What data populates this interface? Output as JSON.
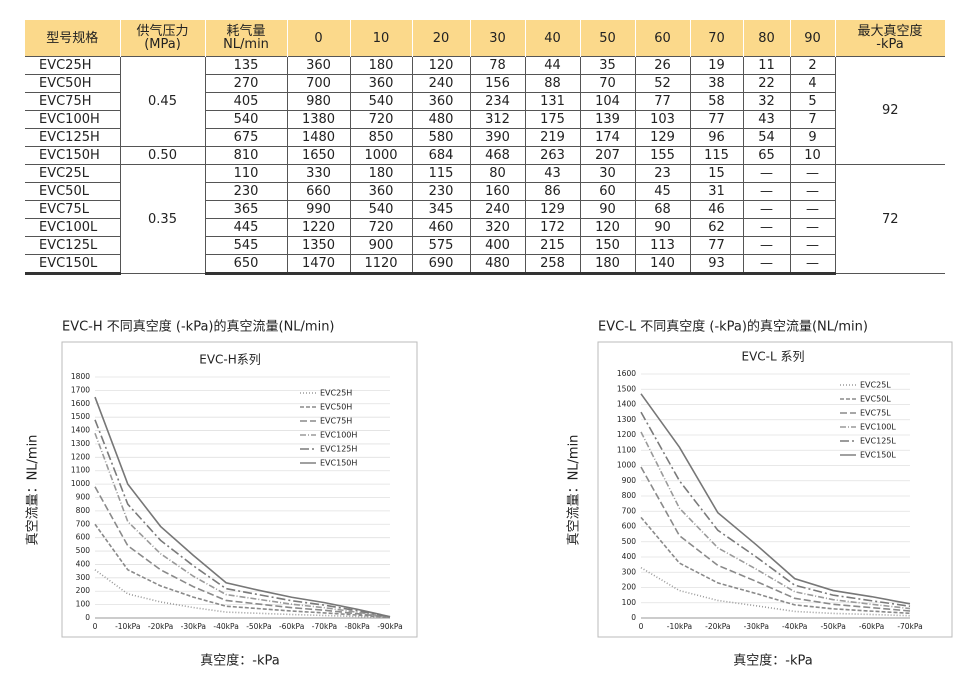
{
  "table": {
    "headers": [
      "型号规格",
      [
        "供气压力",
        "(MPa)"
      ],
      [
        "耗气量",
        "NL/min"
      ],
      "0",
      "10",
      "20",
      "30",
      "40",
      "50",
      "60",
      "70",
      "80",
      "90",
      [
        "最大真空度",
        "-kPa"
      ]
    ],
    "sections": [
      {
        "max_vacuum": 92,
        "groups": [
          {
            "pressure": "0.45",
            "rows": [
              [
                "EVC25H",
                135,
                360,
                180,
                120,
                78,
                44,
                35,
                26,
                19,
                11,
                2
              ],
              [
                "EVC50H",
                270,
                700,
                360,
                240,
                156,
                88,
                70,
                52,
                38,
                22,
                4
              ],
              [
                "EVC75H",
                405,
                980,
                540,
                360,
                234,
                131,
                104,
                77,
                58,
                32,
                5
              ],
              [
                "EVC100H",
                540,
                1380,
                720,
                480,
                312,
                175,
                139,
                103,
                77,
                43,
                7
              ],
              [
                "EVC125H",
                675,
                1480,
                850,
                580,
                390,
                219,
                174,
                129,
                96,
                54,
                9
              ]
            ]
          },
          {
            "pressure": "0.50",
            "rows": [
              [
                "EVC150H",
                810,
                1650,
                1000,
                684,
                468,
                263,
                207,
                155,
                115,
                65,
                10
              ]
            ]
          }
        ]
      },
      {
        "max_vacuum": 72,
        "groups": [
          {
            "pressure": "0.35",
            "rows": [
              [
                "EVC25L",
                110,
                330,
                180,
                115,
                80,
                43,
                30,
                23,
                15,
                "—",
                "—"
              ],
              [
                "EVC50L",
                230,
                660,
                360,
                230,
                160,
                86,
                60,
                45,
                31,
                "—",
                "—"
              ],
              [
                "EVC75L",
                365,
                990,
                540,
                345,
                240,
                129,
                90,
                68,
                46,
                "—",
                "—"
              ],
              [
                "EVC100L",
                445,
                1220,
                720,
                460,
                320,
                172,
                120,
                90,
                62,
                "—",
                "—"
              ],
              [
                "EVC125L",
                545,
                1350,
                900,
                575,
                400,
                215,
                150,
                113,
                77,
                "—",
                "—"
              ],
              [
                "EVC150L",
                650,
                1470,
                1120,
                690,
                480,
                258,
                180,
                140,
                93,
                "—",
                "—"
              ]
            ]
          }
        ]
      }
    ]
  },
  "chart_data": [
    {
      "type": "line",
      "caption": "EVC-H 不同真空度 (-kPa)的真空流量(NL/min)",
      "title": "EVC-H系列",
      "y_label": "真空流量：NL/min",
      "x_label": "真空度：-kPa",
      "categories": [
        "0",
        "-10kPa",
        "-20kPa",
        "-30kPa",
        "-40kPa",
        "-50kPa",
        "-60kPa",
        "-70kPa",
        "-80kPa",
        "-90kPa"
      ],
      "ylim": [
        0,
        1800
      ],
      "yticks": [
        0,
        100,
        200,
        300,
        400,
        500,
        600,
        700,
        800,
        900,
        1000,
        1100,
        1200,
        1300,
        1400,
        1500,
        1600,
        1700,
        1800
      ],
      "grid": true,
      "series": [
        {
          "name": "EVC25H",
          "color": "#9a9a9a",
          "dash": "dotted",
          "values": [
            360,
            180,
            120,
            78,
            44,
            35,
            26,
            19,
            11,
            2
          ]
        },
        {
          "name": "EVC50H",
          "color": "#8a8a8a",
          "dash": "dashed",
          "values": [
            700,
            360,
            240,
            156,
            88,
            70,
            52,
            38,
            22,
            4
          ]
        },
        {
          "name": "EVC75H",
          "color": "#8a8a8a",
          "dash": "long-dash",
          "values": [
            980,
            540,
            360,
            234,
            131,
            104,
            77,
            58,
            32,
            5
          ]
        },
        {
          "name": "EVC100H",
          "color": "#9a9a9a",
          "dash": "dash-dot",
          "values": [
            1380,
            720,
            480,
            312,
            175,
            139,
            103,
            77,
            43,
            7
          ]
        },
        {
          "name": "EVC125H",
          "color": "#7a7a7a",
          "dash": "long-dash-dot",
          "values": [
            1480,
            850,
            580,
            390,
            219,
            174,
            129,
            96,
            54,
            9
          ]
        },
        {
          "name": "EVC150H",
          "color": "#777777",
          "dash": "solid",
          "values": [
            1650,
            1000,
            684,
            468,
            263,
            207,
            155,
            115,
            65,
            10
          ]
        }
      ]
    },
    {
      "type": "line",
      "caption": "EVC-L 不同真空度 (-kPa)的真空流量(NL/min)",
      "title": "EVC-L 系列",
      "y_label": "真空流量：NL/min",
      "x_label": "真空度：-kPa",
      "categories": [
        "0",
        "-10kPa",
        "-20kPa",
        "-30kPa",
        "-40kPa",
        "-50kPa",
        "-60kPa",
        "-70kPa"
      ],
      "ylim": [
        0,
        1600
      ],
      "yticks": [
        0,
        100,
        200,
        300,
        400,
        500,
        600,
        700,
        800,
        900,
        1000,
        1100,
        1200,
        1300,
        1400,
        1500,
        1600
      ],
      "grid": true,
      "series": [
        {
          "name": "EVC25L",
          "color": "#9a9a9a",
          "dash": "dotted",
          "values": [
            330,
            180,
            115,
            80,
            43,
            30,
            23,
            15
          ]
        },
        {
          "name": "EVC50L",
          "color": "#8a8a8a",
          "dash": "dashed",
          "values": [
            660,
            360,
            230,
            160,
            86,
            60,
            45,
            31
          ]
        },
        {
          "name": "EVC75L",
          "color": "#8a8a8a",
          "dash": "long-dash",
          "values": [
            990,
            540,
            345,
            240,
            129,
            90,
            68,
            46
          ]
        },
        {
          "name": "EVC100L",
          "color": "#9a9a9a",
          "dash": "dash-dot",
          "values": [
            1220,
            720,
            460,
            320,
            172,
            120,
            90,
            62
          ]
        },
        {
          "name": "EVC125L",
          "color": "#7a7a7a",
          "dash": "long-dash-dot",
          "values": [
            1350,
            900,
            575,
            400,
            215,
            150,
            113,
            77
          ]
        },
        {
          "name": "EVC150L",
          "color": "#777777",
          "dash": "solid",
          "values": [
            1470,
            1120,
            690,
            480,
            258,
            180,
            140,
            93
          ]
        }
      ]
    }
  ]
}
